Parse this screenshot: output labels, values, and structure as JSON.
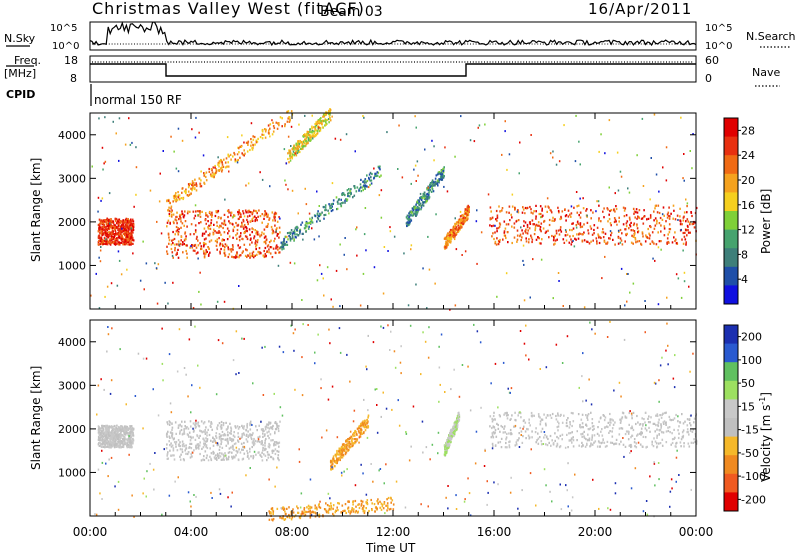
{
  "header": {
    "title": "Christmas Valley West (fitACF)",
    "beam": "Beam 03",
    "date": "16/Apr/2011",
    "nsky_label": "N.Sky",
    "nsearch_label": "N.Search",
    "freq_label": "Freq.",
    "freq_unit": "[MHz]",
    "nave_label": "Nave",
    "cpid_label": "CPID",
    "cpid_value": "normal 150 RF",
    "noise_ticks": [
      "10^5",
      "10^0"
    ],
    "noise_ticks_right": [
      "10^5",
      "10^0"
    ],
    "freq_ticks": [
      "18",
      "8"
    ],
    "nave_ticks": [
      "60",
      "0"
    ]
  },
  "colors": {
    "power_scale": [
      "#1010e0",
      "#1f4fa8",
      "#3e7f7a",
      "#46a36e",
      "#7fd038",
      "#f5cf1e",
      "#f5a21e",
      "#f06a14",
      "#e83010",
      "#e00000"
    ],
    "velocity_scale": [
      "#1b2fb0",
      "#2a5ad0",
      "#60c060",
      "#9de060",
      "#c8c8c8",
      "#c0c0c0",
      "#f5b82a",
      "#f08a20",
      "#f05a20",
      "#e00000"
    ]
  },
  "chart_data": [
    {
      "type": "heatmap",
      "name": "power",
      "ylabel": "Slant Range [km]",
      "yticks": [
        "1000",
        "2000",
        "3000",
        "4000"
      ],
      "ylim": [
        0,
        4500
      ],
      "xlim": [
        0,
        24
      ],
      "colorbar_label": "Power [dB]",
      "colorbar_ticks": [
        "4",
        "8",
        "12",
        "16",
        "20",
        "24",
        "28"
      ],
      "features": [
        {
          "kind": "band",
          "x": [
            0.3,
            1.7
          ],
          "y": [
            1500,
            2100
          ],
          "value": 26
        },
        {
          "kind": "band",
          "x": [
            3.0,
            7.5
          ],
          "y": [
            1200,
            2300
          ],
          "value": 24
        },
        {
          "kind": "band",
          "x": [
            15.8,
            24.0
          ],
          "y": [
            1500,
            2400
          ],
          "value": 24
        },
        {
          "kind": "streak",
          "x": [
            7.5,
            11.5
          ],
          "y": [
            1500,
            3200
          ],
          "value": 8
        },
        {
          "kind": "streak",
          "x": [
            12.5,
            14.0
          ],
          "y": [
            2000,
            3200
          ],
          "value": 8
        },
        {
          "kind": "streak",
          "x": [
            14.0,
            15.0
          ],
          "y": [
            1500,
            2300
          ],
          "value": 22
        },
        {
          "kind": "streak",
          "x": [
            3.0,
            8.0
          ],
          "y": [
            2400,
            4500
          ],
          "value": 20
        },
        {
          "kind": "streak",
          "x": [
            7.8,
            9.5
          ],
          "y": [
            3500,
            4500
          ],
          "value": 16
        }
      ]
    },
    {
      "type": "heatmap",
      "name": "velocity",
      "ylabel": "Slant Range [km]",
      "yticks": [
        "1000",
        "2000",
        "3000",
        "4000"
      ],
      "ylim": [
        0,
        4500
      ],
      "xlim": [
        0,
        24
      ],
      "colorbar_label": "Velocity [m s",
      "colorbar_label_sup": "-1",
      "colorbar_ticks": [
        "200",
        "100",
        "50",
        "15",
        "-15",
        "-50",
        "-100",
        "-200"
      ],
      "features": [
        {
          "kind": "band",
          "x": [
            0.3,
            1.7
          ],
          "y": [
            1600,
            2100
          ],
          "value": 0
        },
        {
          "kind": "band",
          "x": [
            3.0,
            7.5
          ],
          "y": [
            1300,
            2200
          ],
          "value": 0
        },
        {
          "kind": "band",
          "x": [
            15.8,
            24.0
          ],
          "y": [
            1600,
            2400
          ],
          "value": 0
        },
        {
          "kind": "streak",
          "x": [
            9.5,
            11.0
          ],
          "y": [
            1200,
            2200
          ],
          "value": -80
        },
        {
          "kind": "streak",
          "x": [
            14.0,
            14.6
          ],
          "y": [
            1500,
            2300
          ],
          "value": 40
        },
        {
          "kind": "streak",
          "x": [
            7.0,
            12.0
          ],
          "y": [
            50,
            300
          ],
          "value": -80
        }
      ]
    }
  ],
  "xaxis": {
    "label": "Time UT",
    "ticks": [
      "00:00",
      "04:00",
      "08:00",
      "12:00",
      "16:00",
      "20:00",
      "00:00"
    ]
  }
}
